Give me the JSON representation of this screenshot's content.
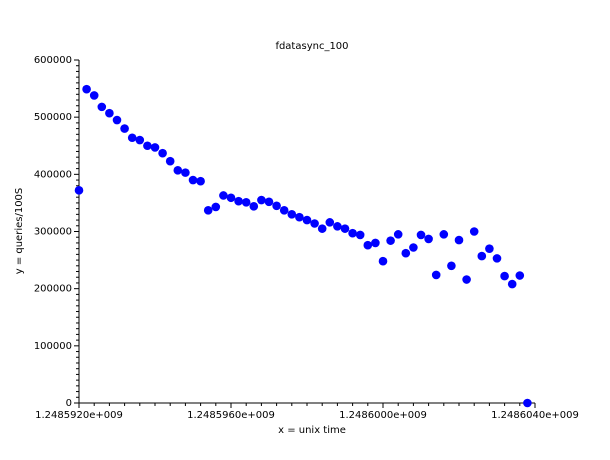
{
  "chart_data": {
    "type": "scatter",
    "title": "fdatasync_100",
    "xlabel": "x = unix time",
    "ylabel": "y = queries/100S",
    "xlim": [
      1248592000,
      1248604000
    ],
    "ylim": [
      0,
      600000
    ],
    "x_ticks": [
      {
        "value": 1248592000,
        "label": "1.2485920e+009"
      },
      {
        "value": 1248596000,
        "label": "1.2485960e+009"
      },
      {
        "value": 1248600000,
        "label": "1.2486000e+009"
      },
      {
        "value": 1248604000,
        "label": "1.2486040e+009"
      }
    ],
    "y_ticks": [
      {
        "value": 0,
        "label": "0"
      },
      {
        "value": 100000,
        "label": "100000"
      },
      {
        "value": 200000,
        "label": "200000"
      },
      {
        "value": 300000,
        "label": "300000"
      },
      {
        "value": 400000,
        "label": "400000"
      },
      {
        "value": 500000,
        "label": "500000"
      },
      {
        "value": 600000,
        "label": "600000"
      }
    ],
    "grid": false,
    "marker_color": "#0000ff",
    "series": [
      {
        "points": [
          [
            1248592000,
            372000
          ],
          [
            1248592200,
            549000
          ],
          [
            1248592400,
            538000
          ],
          [
            1248592600,
            518000
          ],
          [
            1248592800,
            507000
          ],
          [
            1248593000,
            495000
          ],
          [
            1248593200,
            480000
          ],
          [
            1248593400,
            464000
          ],
          [
            1248593600,
            460000
          ],
          [
            1248593800,
            450000
          ],
          [
            1248594000,
            447000
          ],
          [
            1248594200,
            437000
          ],
          [
            1248594400,
            423000
          ],
          [
            1248594600,
            407000
          ],
          [
            1248594800,
            403000
          ],
          [
            1248595000,
            390000
          ],
          [
            1248595200,
            388000
          ],
          [
            1248595400,
            337000
          ],
          [
            1248595600,
            343000
          ],
          [
            1248595800,
            363000
          ],
          [
            1248596000,
            359000
          ],
          [
            1248596200,
            353000
          ],
          [
            1248596400,
            351000
          ],
          [
            1248596600,
            344000
          ],
          [
            1248596800,
            355000
          ],
          [
            1248597000,
            352000
          ],
          [
            1248597200,
            345000
          ],
          [
            1248597400,
            337000
          ],
          [
            1248597600,
            330000
          ],
          [
            1248597800,
            325000
          ],
          [
            1248598000,
            320000
          ],
          [
            1248598200,
            314000
          ],
          [
            1248598400,
            305000
          ],
          [
            1248598600,
            316000
          ],
          [
            1248598800,
            309000
          ],
          [
            1248599000,
            305000
          ],
          [
            1248599200,
            297000
          ],
          [
            1248599400,
            294000
          ],
          [
            1248599600,
            276000
          ],
          [
            1248599800,
            280000
          ],
          [
            1248600000,
            248000
          ],
          [
            1248600200,
            284000
          ],
          [
            1248600400,
            295000
          ],
          [
            1248600600,
            262000
          ],
          [
            1248600800,
            272000
          ],
          [
            1248601000,
            294000
          ],
          [
            1248601200,
            287000
          ],
          [
            1248601400,
            224000
          ],
          [
            1248601600,
            295000
          ],
          [
            1248601800,
            240000
          ],
          [
            1248602000,
            285000
          ],
          [
            1248602200,
            216000
          ],
          [
            1248602400,
            300000
          ],
          [
            1248602600,
            257000
          ],
          [
            1248602800,
            270000
          ],
          [
            1248603000,
            253000
          ],
          [
            1248603200,
            222000
          ],
          [
            1248603400,
            208000
          ],
          [
            1248603600,
            223000
          ],
          [
            1248603800,
            0
          ]
        ]
      }
    ]
  }
}
